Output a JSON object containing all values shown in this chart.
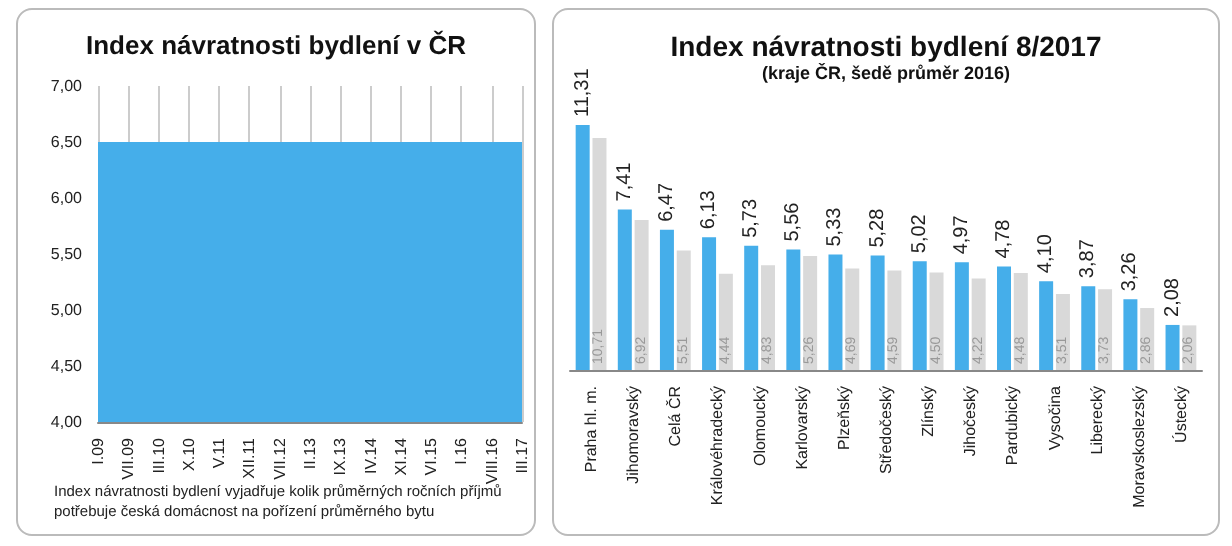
{
  "chart_data": [
    {
      "type": "area",
      "title": "Index návratnosti bydlení v ČR",
      "categories": [
        "I.09",
        "VII.09",
        "III.10",
        "X.10",
        "V.11",
        "XII.11",
        "VII.12",
        "II.13",
        "IX.13",
        "IV.14",
        "XI.14",
        "VI.15",
        "I.16",
        "VIII.16",
        "III.17"
      ],
      "values": [
        6.5,
        6.5,
        6.5,
        6.5,
        6.5,
        6.5,
        6.5,
        6.5,
        6.5,
        6.5,
        6.5,
        6.5,
        6.5,
        6.5,
        6.5
      ],
      "color": "#45aeea",
      "ylim": [
        4,
        7
      ],
      "yticks": [
        {
          "value": 4,
          "label": "4,00"
        },
        {
          "value": 4.5,
          "label": "4,50"
        },
        {
          "value": 5,
          "label": "5,00"
        },
        {
          "value": 5.5,
          "label": "5,50"
        },
        {
          "value": 6,
          "label": "6,00"
        },
        {
          "value": 6.5,
          "label": "6,50"
        },
        {
          "value": 7,
          "label": "7,00"
        }
      ],
      "grid": "x",
      "annotations": [
        "Index návratnosti bydlení vyjadřuje kolik průměrných ročních příjmů potřebuje česká domácnost na pořízení průměrného bytu"
      ]
    },
    {
      "type": "bar",
      "title": "Index návratnosti bydlení 8/2017",
      "subtitle": "(kraje ČR, šedě průměr 2016)",
      "categories": [
        "Praha hl. m.",
        "Jihomoravský",
        "Celá ČR",
        "Královéhradecký",
        "Olomoucký",
        "Karlovarský",
        "Plzeňský",
        "Středočeský",
        "Zlínský",
        "Jihočeský",
        "Pardubický",
        "Vysočina",
        "Liberecký",
        "Moravskoslezský",
        "Ústecký"
      ],
      "series": [
        {
          "color": "#45aeea",
          "values": [
            11.31,
            7.41,
            6.47,
            6.13,
            5.73,
            5.56,
            5.33,
            5.28,
            5.02,
            4.97,
            4.78,
            4.1,
            3.87,
            3.26,
            2.08
          ],
          "value_labels": [
            "11,31",
            "7,41",
            "6,47",
            "6,13",
            "5,73",
            "5,56",
            "5,33",
            "5,28",
            "5,02",
            "4,97",
            "4,78",
            "4,10",
            "3,87",
            "3,26",
            "2,08"
          ]
        },
        {
          "color": "#d9d9d9",
          "values": [
            10.71,
            6.92,
            5.51,
            4.44,
            4.83,
            5.26,
            4.69,
            4.59,
            4.5,
            4.22,
            4.48,
            3.51,
            3.73,
            2.86,
            2.06
          ],
          "value_labels": [
            "10,71",
            "6,92",
            "5,51",
            "4,44",
            "4,83",
            "5,26",
            "4,69",
            "4,59",
            "4,50",
            "4,22",
            "4,48",
            "3,51",
            "3,73",
            "2,86",
            "2,06"
          ]
        }
      ]
    }
  ]
}
